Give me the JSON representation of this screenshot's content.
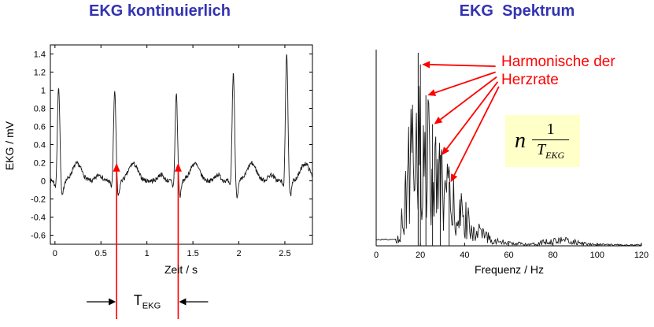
{
  "left_chart": {
    "title": "EKG kontinuierlich",
    "xlabel": "Zeit / s",
    "ylabel": "EKG / mV",
    "period_label": {
      "base": "T",
      "sub": "EKG"
    }
  },
  "right_chart": {
    "title": "EKG  Spektrum",
    "xlabel": "Frequenz / Hz",
    "harmonics_label": "Harmonische der Herzrate",
    "formula": {
      "factor": "n",
      "numerator": "1",
      "den_base": "T",
      "den_sub": "EKG"
    }
  },
  "colors": {
    "title_blue": "#3333b2",
    "marker_red": "#ff0000",
    "trace": "#1a1a1a",
    "formula_bg": "#ffffc8"
  },
  "chart_data": [
    {
      "type": "line",
      "title": "EKG kontinuierlich",
      "xlabel": "Zeit / s",
      "ylabel": "EKG / mV",
      "xlim": [
        -0.05,
        2.8
      ],
      "ylim": [
        -0.7,
        1.5
      ],
      "x_ticks": [
        0,
        0.5,
        1,
        1.5,
        2,
        2.5
      ],
      "y_ticks": [
        -0.6,
        -0.4,
        -0.2,
        0,
        0.2,
        0.4,
        0.6,
        0.8,
        1,
        1.2,
        1.4
      ],
      "grid": false,
      "r_peak_times": [
        0.04,
        0.65,
        1.32,
        1.94,
        2.52
      ],
      "r_peak_amplitudes": [
        1.05,
        1.0,
        0.97,
        1.2,
        1.42
      ],
      "period_markers": [
        0.67,
        1.34
      ],
      "period_seconds": 0.67,
      "noise_amplitude": 0.025
    },
    {
      "type": "line",
      "title": "EKG Spektrum",
      "xlabel": "Frequenz / Hz",
      "xlim": [
        0,
        120
      ],
      "x_ticks": [
        0,
        20,
        40,
        60,
        80,
        100,
        120
      ],
      "y_axis_labeled": false,
      "grid": false,
      "envelope": [
        [
          0,
          0.032
        ],
        [
          8,
          0.032
        ],
        [
          9,
          0.04
        ],
        [
          11,
          0.12
        ],
        [
          13,
          0.45
        ],
        [
          15,
          0.7
        ],
        [
          17,
          0.95
        ],
        [
          19,
          1.0
        ],
        [
          21,
          0.85
        ],
        [
          23,
          0.8
        ],
        [
          25,
          0.7
        ],
        [
          27,
          0.62
        ],
        [
          29,
          0.55
        ],
        [
          31,
          0.5
        ],
        [
          33,
          0.42
        ],
        [
          35,
          0.36
        ],
        [
          37,
          0.32
        ],
        [
          39,
          0.27
        ],
        [
          41,
          0.22
        ],
        [
          43,
          0.18
        ],
        [
          45,
          0.14
        ],
        [
          48,
          0.1
        ],
        [
          51,
          0.07
        ],
        [
          55,
          0.04
        ],
        [
          60,
          0.025
        ],
        [
          65,
          0.02
        ],
        [
          70,
          0.018
        ],
        [
          75,
          0.03
        ],
        [
          80,
          0.05
        ],
        [
          84,
          0.055
        ],
        [
          88,
          0.045
        ],
        [
          92,
          0.025
        ],
        [
          96,
          0.015
        ],
        [
          105,
          0.01
        ],
        [
          120,
          0.008
        ]
      ],
      "harmonic_arrows": [
        {
          "from": [
            54,
            0.93
          ],
          "to": [
            20,
            0.94
          ]
        },
        {
          "from": [
            54,
            0.9
          ],
          "to": [
            22.5,
            0.78
          ]
        },
        {
          "from": [
            54.5,
            0.875
          ],
          "to": [
            25.5,
            0.63
          ]
        },
        {
          "from": [
            55,
            0.85
          ],
          "to": [
            29,
            0.47
          ]
        },
        {
          "from": [
            55.5,
            0.825
          ],
          "to": [
            33,
            0.33
          ]
        }
      ]
    }
  ]
}
